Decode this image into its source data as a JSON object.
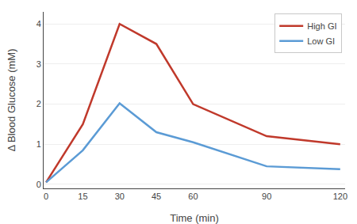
{
  "chart_data": {
    "type": "line",
    "x": [
      0,
      15,
      30,
      45,
      60,
      90,
      120
    ],
    "series": [
      {
        "name": "High GI",
        "color": "#c0392b",
        "values": [
          0.05,
          1.5,
          4.0,
          3.5,
          2.0,
          1.2,
          1.0
        ]
      },
      {
        "name": "Low GI",
        "color": "#5b9bd5",
        "values": [
          0.05,
          0.85,
          2.02,
          1.3,
          1.05,
          0.45,
          0.38
        ]
      }
    ],
    "x_label": "Time (min)",
    "y_label": "Δ Blood Glucose (mM)",
    "xlim": [
      -1,
      122
    ],
    "ylim": [
      -0.1,
      4.3
    ],
    "xticks": [
      0,
      15,
      30,
      45,
      60,
      90,
      120
    ],
    "yticks": [
      0,
      1,
      2,
      3,
      4
    ],
    "grid": "y",
    "legend": "upper right"
  }
}
